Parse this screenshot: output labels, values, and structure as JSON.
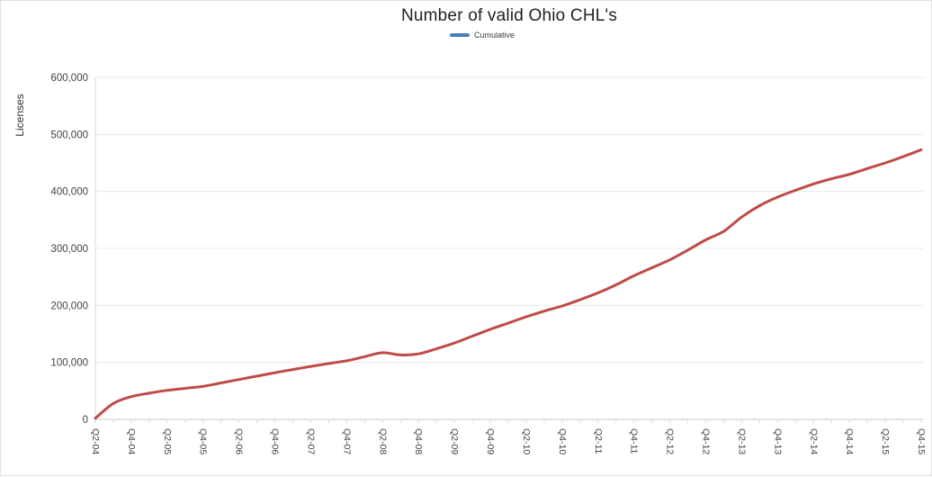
{
  "chart_data": {
    "type": "line",
    "title": "Number of valid Ohio CHL's",
    "ylabel": "Licenses",
    "xlabel": "",
    "legend": [
      {
        "label": "Cumulative",
        "swatch_color": "#4a7ebb"
      }
    ],
    "grid": "horizontal",
    "legend_position": "top-center",
    "ylim": [
      0,
      600000
    ],
    "y_ticks": [
      0,
      100000,
      200000,
      300000,
      400000,
      500000,
      600000
    ],
    "y_tick_labels": [
      "0",
      "100,000",
      "200,000",
      "300,000",
      "400,000",
      "500,000",
      "600,000"
    ],
    "x_label_step": 2,
    "x": [
      "Q2-04",
      "Q3-04",
      "Q4-04",
      "Q1-05",
      "Q2-05",
      "Q3-05",
      "Q4-05",
      "Q1-06",
      "Q2-06",
      "Q3-06",
      "Q4-06",
      "Q1-07",
      "Q2-07",
      "Q3-07",
      "Q4-07",
      "Q1-08",
      "Q2-08",
      "Q3-08",
      "Q4-08",
      "Q1-09",
      "Q2-09",
      "Q3-09",
      "Q4-09",
      "Q1-10",
      "Q2-10",
      "Q3-10",
      "Q4-10",
      "Q1-11",
      "Q2-11",
      "Q3-11",
      "Q4-11",
      "Q1-12",
      "Q2-12",
      "Q3-12",
      "Q4-12",
      "Q1-13",
      "Q2-13",
      "Q3-13",
      "Q4-13",
      "Q1-14",
      "Q2-14",
      "Q3-14",
      "Q4-14",
      "Q1-15",
      "Q2-15",
      "Q3-15",
      "Q4-15"
    ],
    "series": [
      {
        "name": "Cumulative",
        "color": "#be4b48",
        "values": [
          2000,
          28000,
          40000,
          46000,
          51000,
          54500,
          58000,
          64000,
          70000,
          76000,
          82000,
          87500,
          93000,
          98000,
          103000,
          110000,
          117000,
          113000,
          115000,
          124000,
          134000,
          146000,
          158000,
          169000,
          180000,
          190000,
          199000,
          210000,
          222000,
          236000,
          252000,
          266000,
          280000,
          297000,
          315000,
          330000,
          355000,
          375000,
          390000,
          402000,
          413000,
          422000,
          430000,
          440000,
          450000,
          461000,
          473000
        ]
      }
    ],
    "colors": {
      "gridline": "#e8e8e8",
      "baseline": "#c9c9c9",
      "axis_line": "#d9d9d9",
      "tick": "#d9d9d9",
      "tick_text": "#424242",
      "title_text": "#212121"
    }
  }
}
